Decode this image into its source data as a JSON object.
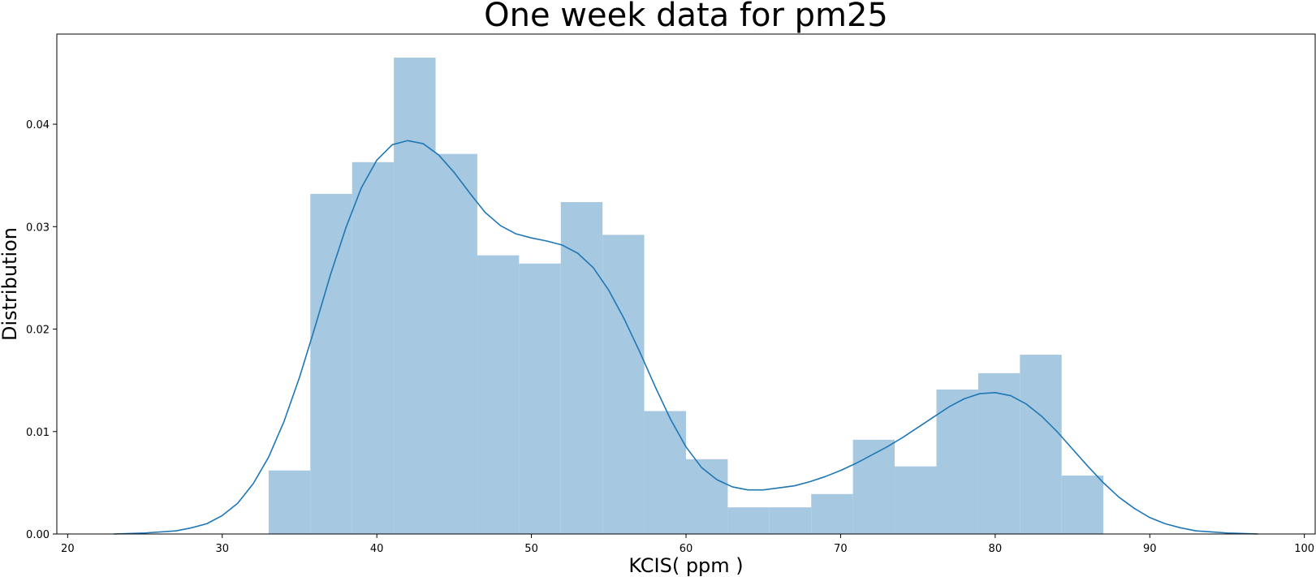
{
  "chart_data": {
    "type": "bar",
    "title": "One week data for pm25",
    "xlabel": "KCIS( ppm )",
    "ylabel": "Distribution",
    "xlim": [
      19.3,
      100.7
    ],
    "ylim": [
      0,
      0.0488
    ],
    "xticks": [
      20,
      30,
      40,
      50,
      60,
      70,
      80,
      90,
      100
    ],
    "xtick_labels": [
      "20",
      "30",
      "40",
      "50",
      "60",
      "70",
      "80",
      "90",
      "100"
    ],
    "yticks": [
      0.0,
      0.01,
      0.02,
      0.03,
      0.04
    ],
    "ytick_labels": [
      "0.00",
      "0.01",
      "0.02",
      "0.03",
      "0.04"
    ],
    "grid": false,
    "colors": {
      "bar_fill": "#a6c8e0",
      "line": "#1f77b4"
    },
    "histogram": {
      "bin_edges": [
        33.0,
        35.7,
        38.4,
        41.1,
        43.8,
        46.5,
        49.2,
        51.9,
        54.6,
        57.3,
        60.0,
        62.7,
        65.4,
        68.1,
        70.8,
        73.5,
        76.2,
        78.9,
        81.6,
        84.3,
        87.0
      ],
      "values": [
        0.0062,
        0.0332,
        0.0363,
        0.0465,
        0.0371,
        0.0272,
        0.0264,
        0.0324,
        0.0292,
        0.012,
        0.0073,
        0.0026,
        0.0026,
        0.0039,
        0.0092,
        0.0066,
        0.0141,
        0.0157,
        0.0175,
        0.0057
      ]
    },
    "kde": {
      "x": [
        23,
        25,
        27,
        28,
        29,
        30,
        31,
        32,
        33,
        34,
        35,
        36,
        37,
        38,
        39,
        40,
        41,
        42,
        43,
        44,
        45,
        46,
        47,
        48,
        49,
        50,
        51,
        52,
        53,
        54,
        55,
        56,
        57,
        58,
        59,
        60,
        61,
        62,
        63,
        64,
        65,
        66,
        67,
        68,
        69,
        70,
        71,
        72,
        73,
        74,
        75,
        76,
        77,
        78,
        79,
        80,
        81,
        82,
        83,
        84,
        85,
        86,
        87,
        88,
        89,
        90,
        91,
        92,
        93,
        94,
        95,
        97
      ],
      "y": [
        0.0,
        0.0001,
        0.0003,
        0.0006,
        0.001,
        0.0018,
        0.003,
        0.0049,
        0.0075,
        0.011,
        0.0153,
        0.0202,
        0.0253,
        0.0299,
        0.0338,
        0.0365,
        0.038,
        0.0384,
        0.0381,
        0.037,
        0.0353,
        0.0333,
        0.0314,
        0.0301,
        0.0293,
        0.0289,
        0.0286,
        0.0282,
        0.0274,
        0.026,
        0.0238,
        0.021,
        0.0178,
        0.0144,
        0.0112,
        0.0085,
        0.0065,
        0.0053,
        0.0046,
        0.0043,
        0.0043,
        0.0045,
        0.0047,
        0.0051,
        0.0056,
        0.0062,
        0.0069,
        0.0077,
        0.0085,
        0.0094,
        0.0104,
        0.0114,
        0.0124,
        0.0132,
        0.0137,
        0.0138,
        0.0135,
        0.0127,
        0.0115,
        0.01,
        0.0083,
        0.0066,
        0.005,
        0.0036,
        0.0025,
        0.0016,
        0.001,
        0.0006,
        0.0003,
        0.0002,
        0.0001,
        0.0
      ]
    }
  }
}
